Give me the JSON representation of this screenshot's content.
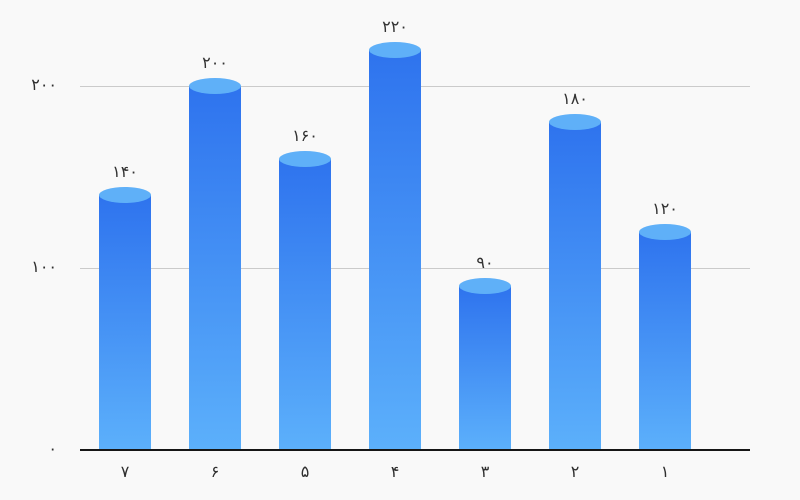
{
  "chart_data": {
    "type": "bar",
    "direction": "rtl",
    "title": "",
    "xlabel": "",
    "ylabel": "",
    "ylim": [
      0,
      240
    ],
    "categories": [
      "۱",
      "۲",
      "۳",
      "۴",
      "۵",
      "۶",
      "۷"
    ],
    "values": [
      120,
      180,
      90,
      220,
      160,
      200,
      140
    ],
    "bars_display_order_left_to_right": [
      {
        "category_label": "۷",
        "value": 140,
        "value_label": "۱۴۰"
      },
      {
        "category_label": "۶",
        "value": 200,
        "value_label": "۲۰۰"
      },
      {
        "category_label": "۵",
        "value": 160,
        "value_label": "۱۶۰"
      },
      {
        "category_label": "۴",
        "value": 220,
        "value_label": "۲۲۰"
      },
      {
        "category_label": "۳",
        "value": 90,
        "value_label": "۹۰"
      },
      {
        "category_label": "۲",
        "value": 180,
        "value_label": "۱۸۰"
      },
      {
        "category_label": "۱",
        "value": 120,
        "value_label": "۱۲۰"
      }
    ],
    "y_axis": {
      "ticks": [
        {
          "value": 0,
          "label": "۰"
        },
        {
          "value": 100,
          "label": "۱۰۰"
        },
        {
          "value": 200,
          "label": "۲۰۰"
        }
      ]
    },
    "grid": "horizontal-only",
    "legend": "none",
    "colors": {
      "bar_top_ellipse": "#5fb0f8",
      "bar_body_gradient_top": "#2e73ee",
      "bar_body_gradient_bottom": "#5cb0fb",
      "background": "#f9f9f9",
      "gridline": "#cbcbcb",
      "axis_line": "#161616",
      "label_text": "#333333"
    }
  }
}
